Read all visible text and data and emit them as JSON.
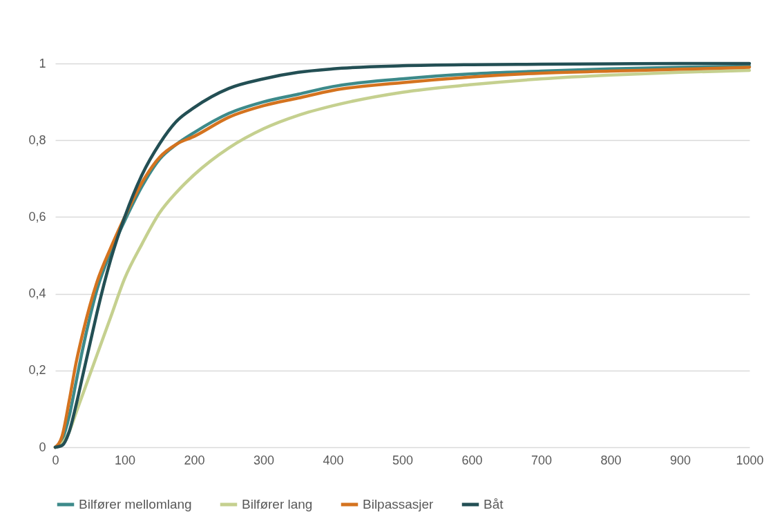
{
  "chart_data": {
    "type": "line",
    "x": [
      0,
      10,
      20,
      30,
      40,
      50,
      60,
      80,
      100,
      125,
      150,
      175,
      200,
      250,
      300,
      350,
      400,
      500,
      600,
      700,
      800,
      900,
      1000
    ],
    "series": [
      {
        "name": "Bilfører mellomlang",
        "color": "#3d8a8a",
        "values": [
          0,
          0.02,
          0.08,
          0.17,
          0.26,
          0.34,
          0.41,
          0.51,
          0.59,
          0.68,
          0.75,
          0.79,
          0.82,
          0.87,
          0.9,
          0.92,
          0.94,
          0.96,
          0.973,
          0.98,
          0.986,
          0.99,
          0.993
        ]
      },
      {
        "name": "Bilfører lang",
        "color": "#c5d08f",
        "values": [
          0,
          0.01,
          0.04,
          0.09,
          0.14,
          0.19,
          0.24,
          0.34,
          0.44,
          0.53,
          0.61,
          0.665,
          0.71,
          0.78,
          0.83,
          0.865,
          0.89,
          0.925,
          0.945,
          0.96,
          0.97,
          0.977,
          0.982
        ]
      },
      {
        "name": "Bilpassasjer",
        "color": "#d4731f",
        "values": [
          0,
          0.03,
          0.12,
          0.22,
          0.3,
          0.37,
          0.43,
          0.52,
          0.6,
          0.69,
          0.755,
          0.79,
          0.81,
          0.86,
          0.89,
          0.91,
          0.93,
          0.95,
          0.965,
          0.975,
          0.98,
          0.985,
          0.99
        ]
      },
      {
        "name": "Båt",
        "color": "#234f54",
        "values": [
          0,
          0.005,
          0.04,
          0.11,
          0.19,
          0.27,
          0.35,
          0.49,
          0.6,
          0.71,
          0.79,
          0.85,
          0.885,
          0.935,
          0.96,
          0.977,
          0.986,
          0.994,
          0.997,
          0.998,
          0.999,
          1.0,
          1.0
        ]
      }
    ],
    "xlim": [
      0,
      1000
    ],
    "xticks": [
      0,
      100,
      200,
      300,
      400,
      500,
      600,
      700,
      800,
      900,
      1000
    ],
    "ylim": [
      0,
      1
    ],
    "yticks": [
      0,
      {
        "value": 0.2,
        "label": "0,2"
      },
      {
        "value": 0.4,
        "label": "0,4"
      },
      {
        "value": 0.6,
        "label": "0,6"
      },
      {
        "value": 0.8,
        "label": "0,8"
      },
      1
    ],
    "grid": "y",
    "legend": "bottom",
    "marker": "none",
    "line_style": "solid"
  }
}
